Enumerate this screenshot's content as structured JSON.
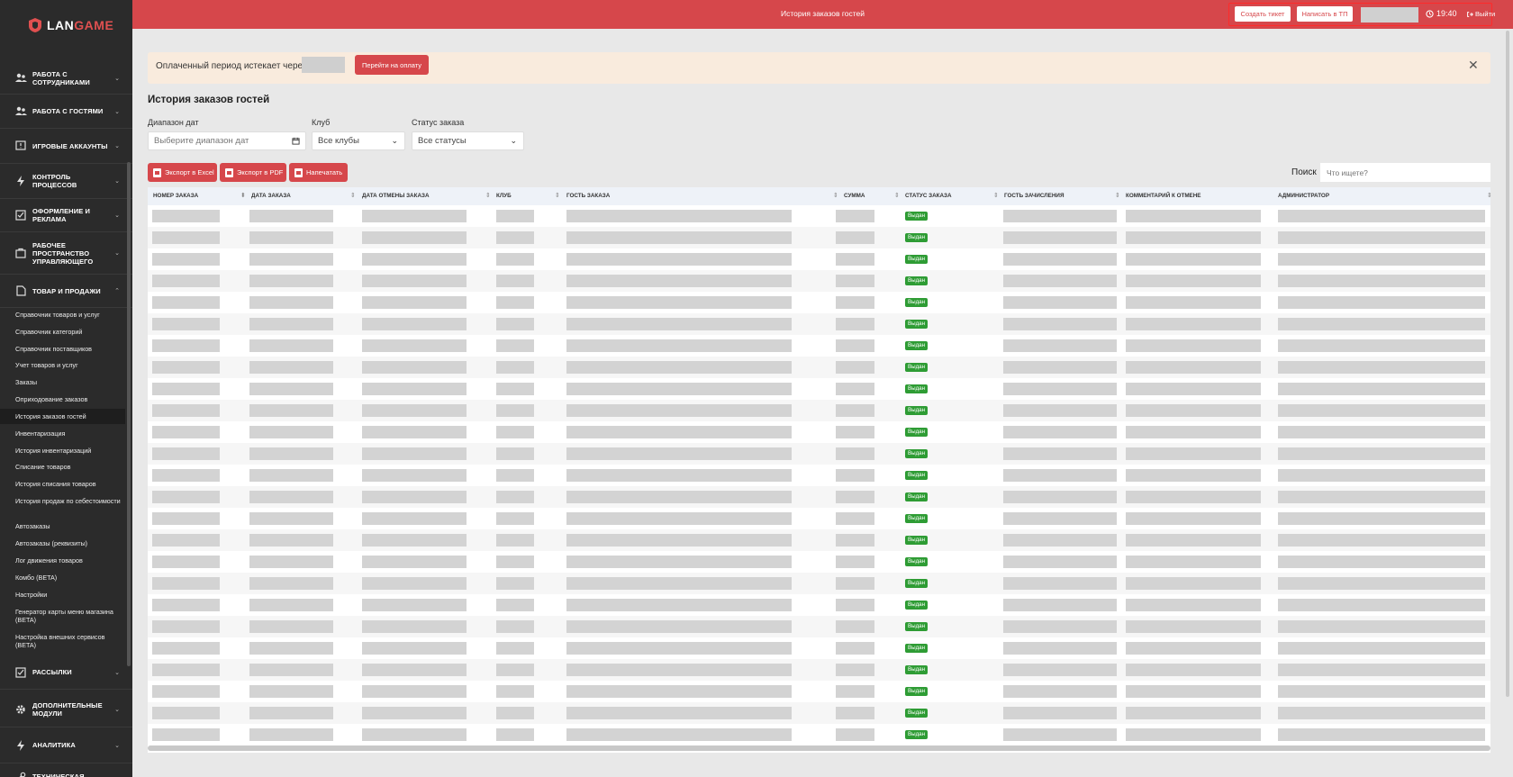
{
  "brand": {
    "lan": "LAN",
    "game": "GAME"
  },
  "sidebar": {
    "sections_top": [
      {
        "label": "Работа с сотрудниками",
        "icon": "users-icon"
      },
      {
        "label": "Работа с гостями",
        "icon": "guests-icon"
      },
      {
        "label": "Игровые аккаунты",
        "icon": "accounts-icon"
      },
      {
        "label": "Контроль процессов",
        "icon": "lightning-icon"
      },
      {
        "label": "Оформление и реклама",
        "icon": "check-square-icon"
      },
      {
        "label": "Рабочее пространство управляющего",
        "icon": "briefcase-icon"
      },
      {
        "label": "Товар и продажи",
        "icon": "document-icon"
      }
    ],
    "sub_items": [
      "Справочник товаров и услуг",
      "Справочник категорий",
      "Справочник поставщиков",
      "Учет товаров и услуг",
      "Заказы",
      "Оприходование заказов",
      "История заказов гостей",
      "Инвентаризация",
      "История инвентаризаций",
      "Списание товаров",
      "История списания товаров",
      "История продаж по себестоимости",
      "Автозаказы",
      "Автозаказы (реквизиты)",
      "Лог движения товаров",
      "Комбо (BETA)",
      "Настройки",
      "Генератор карты меню магазина (BETA)",
      "Настройка внешних сервисов (BETA)"
    ],
    "sections_bottom": [
      {
        "label": "Рассылки",
        "icon": "check-square-icon"
      },
      {
        "label": "Дополнительные модули",
        "icon": "gear-icon"
      },
      {
        "label": "Аналитика",
        "icon": "lightning-icon"
      },
      {
        "label": "Техническая",
        "icon": "wrench-icon"
      }
    ]
  },
  "topbar": {
    "title": "История заказов гостей",
    "create_ticket": "Создать тикет",
    "write_support": "Написать в ТП",
    "time": "19:40",
    "logout": "Выйти"
  },
  "alert": {
    "text": "Оплаченный период истекает через:",
    "pay_button": "Перейти на оплату"
  },
  "page_title": "История заказов гостей",
  "filters": {
    "date_label": "Диапазон дат",
    "date_placeholder": "Выберите диапазон дат",
    "club_label": "Клуб",
    "club_value": "Все клубы",
    "status_label": "Статус заказа",
    "status_value": "Все статусы"
  },
  "actions": {
    "excel": "Экспорт в Excel",
    "pdf": "Экспорт в PDF",
    "print": "Напечатать"
  },
  "search": {
    "label": "Поиск",
    "placeholder": "Что ищете?"
  },
  "table": {
    "columns": [
      "Номер заказа",
      "Дата заказа",
      "Дата отмены заказа",
      "Клуб",
      "Гость заказа",
      "Сумма",
      "Статус заказа",
      "Гость зачисления",
      "Комментарий к отмене",
      "Администратор"
    ],
    "rows": [
      {
        "status": "Выдан"
      },
      {
        "status": "Выдан"
      },
      {
        "status": "Выдан"
      },
      {
        "status": "Выдан"
      },
      {
        "status": "Выдан"
      },
      {
        "status": "Выдан"
      },
      {
        "status": "Выдан"
      },
      {
        "status": "Выдан"
      },
      {
        "status": "Выдан"
      },
      {
        "status": "Выдан"
      },
      {
        "status": "Выдан"
      },
      {
        "status": "Выдан"
      },
      {
        "status": "Выдан"
      },
      {
        "status": "Выдан"
      },
      {
        "status": "Выдан"
      },
      {
        "status": "Выдан"
      },
      {
        "status": "Выдан"
      },
      {
        "status": "Выдан"
      },
      {
        "status": "Выдан"
      },
      {
        "status": "Выдан"
      },
      {
        "status": "Выдан"
      },
      {
        "status": "Выдан"
      },
      {
        "status": "Выдан"
      },
      {
        "status": "Выдан"
      },
      {
        "status": "Выдан"
      }
    ]
  },
  "colors": {
    "accent": "#d6474b",
    "sidebar": "#2b2b2b",
    "badge": "#2e9c34"
  }
}
